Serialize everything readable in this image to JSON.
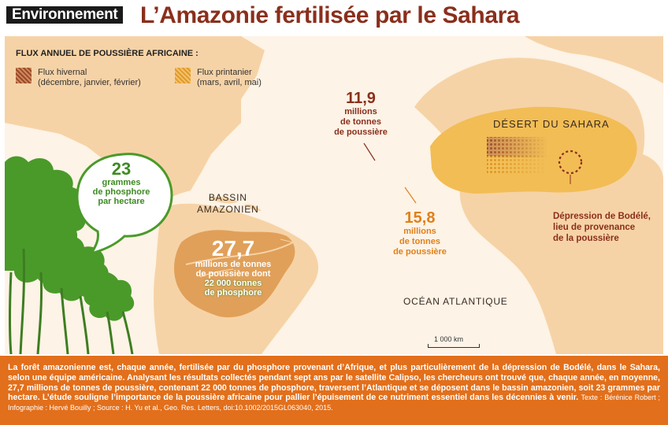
{
  "header": {
    "rubric": "Environnement",
    "title": "L’Amazonie fertilisée par le Sahara"
  },
  "legend": {
    "title": "FLUX ANNUEL DE POUSSIÈRE AFRICAINE :",
    "winter_label": "Flux hivernal",
    "winter_months": "(décembre, janvier, février)",
    "spring_label": "Flux printanier",
    "spring_months": "(mars, avril, mai)",
    "winter_color": "#9a4a2c",
    "spring_color": "#e9a83a"
  },
  "map": {
    "sahara_label": "DÉSERT DU SAHARA",
    "bassin_line1": "BASSIN",
    "bassin_line2": "AMAZONIEN",
    "ocean_label": "OCÉAN ATLANTIQUE",
    "bodele_line1": "Dépression de Bodélé,",
    "bodele_line2": "lieu de provenance",
    "bodele_line3": "de la poussière",
    "scale_label": "1 000 km",
    "winter_flux": {
      "value": "11,9",
      "line1": "millions",
      "line2": "de tonnes",
      "line3": "de poussière",
      "color": "#8a2f1c"
    },
    "spring_flux": {
      "value": "15,8",
      "line1": "millions",
      "line2": "de tonnes",
      "line3": "de poussière",
      "color": "#e0801a"
    },
    "amazon_total": {
      "value": "27,7",
      "line1": "millions de tonnes",
      "line2": "de poussière dont",
      "line3": "22 000 tonnes",
      "line4": "de phosphore"
    },
    "phosphore_bubble": {
      "value": "23",
      "line1": "grammes",
      "line2": "de phosphore",
      "line3": "par hectare",
      "color": "#3e8a23"
    }
  },
  "footer": {
    "text": "La forêt amazonienne est, chaque année, fertilisée par du phosphore provenant d’Afrique, et plus particulièrement de la dépression de Bodélé, dans le Sahara, selon une équipe américaine. Analysant les résultats collectés pendant sept ans par le satellite Calipso, les chercheurs ont trouvé que, chaque année, en moyenne, 27,7 millions de tonnes de poussière, contenant 22 000 tonnes de phosphore, traversent l’Atlantique et se déposent dans le bassin amazonien, soit 23 grammes par hectare. L’étude souligne l’importance de la poussière africaine pour pallier l’épuisement de ce nutriment essentiel dans les décennies à venir.",
    "credit": "Texte : Bérénice Robert ; Infographie : Hervé Bouilly ; Source : H. Yu et al., Geo. Res. Letters, doi:10.1002/2015GL063040, 2015.",
    "background": "#e26f1b"
  }
}
